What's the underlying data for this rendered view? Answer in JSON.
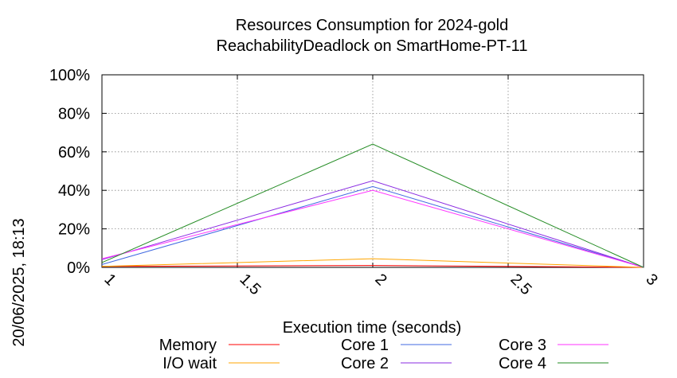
{
  "chart_data": {
    "type": "line",
    "title": "Resources Consumption for 2024-gold",
    "subtitle": "ReachabilityDeadlock on SmartHome-PT-11",
    "xlabel": "Execution time (seconds)",
    "ylabel": "",
    "side_text": "20/06/2025, 18:13",
    "x": [
      1,
      2,
      3
    ],
    "xlim": [
      1,
      3
    ],
    "ylim": [
      0,
      100
    ],
    "x_ticks": [
      1,
      1.5,
      2,
      2.5,
      3
    ],
    "x_tick_labels": [
      "1",
      "1.5",
      "2",
      "2.5",
      "3"
    ],
    "y_ticks": [
      0,
      20,
      40,
      60,
      80,
      100
    ],
    "y_tick_labels": [
      "0%",
      "20%",
      "40%",
      "60%",
      "80%",
      "100%"
    ],
    "grid": true,
    "legend_position": "bottom",
    "series": [
      {
        "name": "Memory",
        "color": "#ff0000",
        "values": [
          0.5,
          1.0,
          0
        ]
      },
      {
        "name": "I/O wait",
        "color": "#ffa500",
        "values": [
          0.5,
          4.5,
          0
        ]
      },
      {
        "name": "Core 1",
        "color": "#4169e1",
        "values": [
          1.5,
          42,
          0
        ]
      },
      {
        "name": "Core 2",
        "color": "#8a2be2",
        "values": [
          4,
          45,
          0
        ]
      },
      {
        "name": "Core 3",
        "color": "#ff33ff",
        "values": [
          4.5,
          40,
          0
        ]
      },
      {
        "name": "Core 4",
        "color": "#228b22",
        "values": [
          2.5,
          64,
          0
        ]
      }
    ]
  }
}
